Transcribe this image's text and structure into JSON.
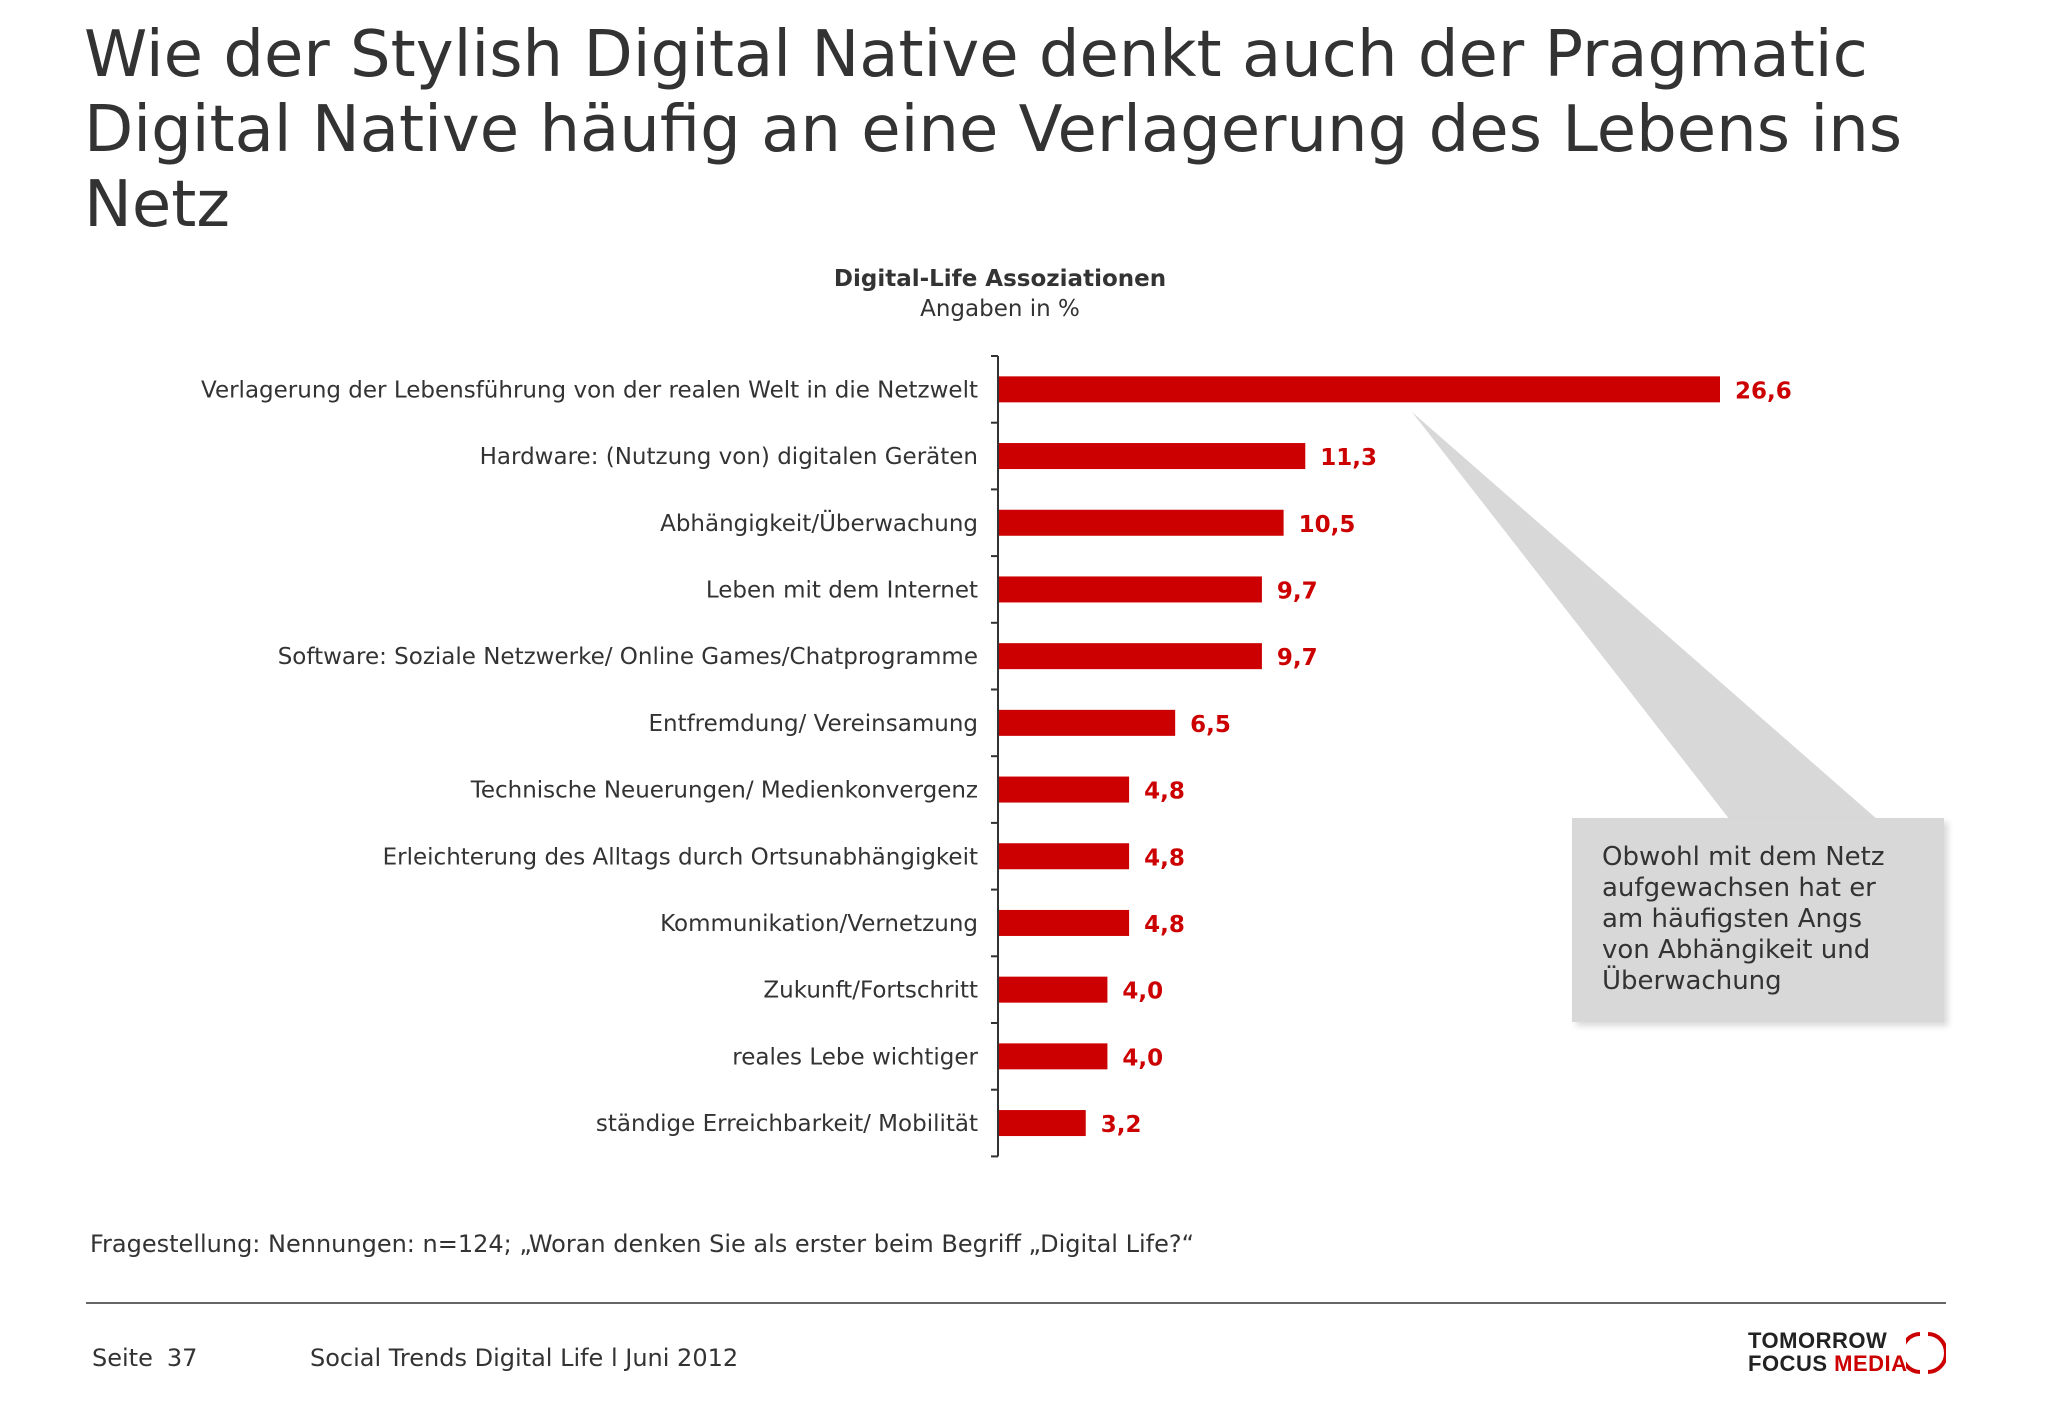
{
  "title": "Wie der Stylish Digital Native denkt auch der Pragmatic Digital Native häufig an eine Verlagerung des Lebens ins Netz",
  "chart_data": {
    "type": "bar",
    "orientation": "horizontal",
    "title": "Digital-Life Assoziationen",
    "subtitle": "Angaben in %",
    "categories": [
      "Verlagerung der Lebensführung von der realen Welt in die Netzwelt",
      "Hardware: (Nutzung von) digitalen Geräten",
      "Abhängigkeit/Überwachung",
      "Leben mit dem Internet",
      "Software: Soziale Netzwerke/ Online Games/Chatprogramme",
      "Entfremdung/ Vereinsamung",
      "Technische Neuerungen/ Medienkonvergenz",
      "Erleichterung des Alltags durch Ortsunabhängigkeit",
      "Kommunikation/Vernetzung",
      "Zukunft/Fortschritt",
      "reales Lebe wichtiger",
      "ständige Erreichbarkeit/ Mobilität"
    ],
    "values": [
      26.6,
      11.3,
      10.5,
      9.7,
      9.7,
      6.5,
      4.8,
      4.8,
      4.8,
      4.0,
      4.0,
      3.2
    ],
    "value_labels": [
      "26,6",
      "11,3",
      "10,5",
      "9,7",
      "9,7",
      "6,5",
      "4,8",
      "4,8",
      "4,8",
      "4,0",
      "4,0",
      "3,2"
    ],
    "bar_color": "#cc0000",
    "label_color": "#cc0000",
    "grid": false,
    "legend": "none"
  },
  "callout": {
    "text": "Obwohl mit dem Netz\naufgewachsen hat er\nam häufigsten Angs\nvon Abhängikeit und\nÜberwachung",
    "background": "#d8d8d8"
  },
  "footnote": "Fragestellung: Nennungen: n=124; „Woran denken Sie als erster beim Begriff „Digital Life?“",
  "footer": {
    "page_label": "Seite",
    "page_number": "37",
    "doc_title": "Social Trends Digital Life l Juni 2012"
  },
  "logo": {
    "line1": "TOMORROW",
    "line2_a": "FOCUS",
    "line2_b": "MEDIA"
  }
}
